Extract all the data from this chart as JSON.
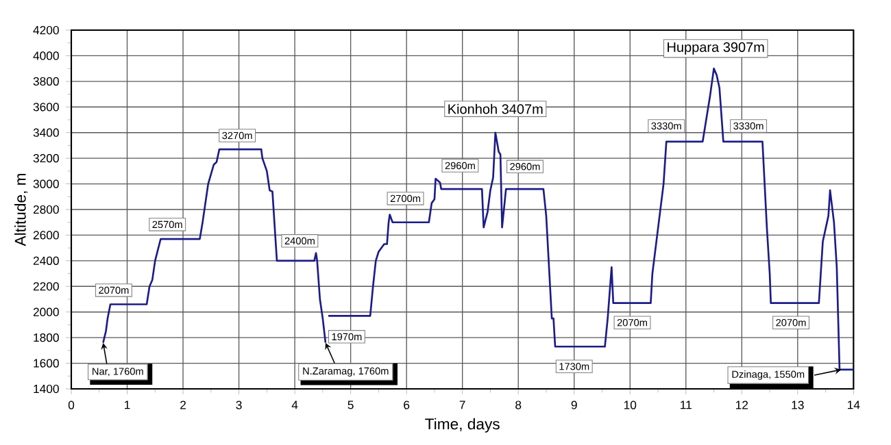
{
  "chart_data": {
    "type": "line",
    "xlabel": "Time, days",
    "ylabel": "Altitude, m",
    "color": "#1c1c8a",
    "grid": true,
    "xlim": [
      0,
      14
    ],
    "xticks": [
      0,
      1,
      2,
      3,
      4,
      5,
      6,
      7,
      8,
      9,
      10,
      11,
      12,
      13,
      14
    ],
    "ylim": [
      1400,
      4200
    ],
    "yticks": [
      1400,
      1600,
      1800,
      2000,
      2200,
      2400,
      2600,
      2800,
      3000,
      3200,
      3400,
      3600,
      3800,
      4000,
      4200
    ],
    "x": [
      0.57,
      0.62,
      0.65,
      0.7,
      1.35,
      1.4,
      1.45,
      1.5,
      1.6,
      2.3,
      2.35,
      2.45,
      2.55,
      2.6,
      2.65,
      3.4,
      3.42,
      3.5,
      3.55,
      3.6,
      3.65,
      3.68,
      4.35,
      4.38,
      4.4,
      4.45,
      4.5,
      4.55,
      4.58,
      4.6,
      5.35,
      5.4,
      5.45,
      5.5,
      5.6,
      5.65,
      5.68,
      5.7,
      5.75,
      6.4,
      6.45,
      6.5,
      6.52,
      6.6,
      6.62,
      7.35,
      7.38,
      7.45,
      7.5,
      7.55,
      7.59,
      7.65,
      7.68,
      7.71,
      7.78,
      8.45,
      8.5,
      8.55,
      8.6,
      8.63,
      8.66,
      9.55,
      9.6,
      9.67,
      9.7,
      10.37,
      10.4,
      10.5,
      10.6,
      10.65,
      11.3,
      11.4,
      11.43,
      11.5,
      11.55,
      11.6,
      11.67,
      12.37,
      12.45,
      12.5,
      12.52,
      13.38,
      13.45,
      13.5,
      13.55,
      13.58,
      13.65,
      13.7,
      13.75,
      14
    ],
    "values": [
      1760,
      1850,
      1950,
      2060,
      2060,
      2200,
      2250,
      2400,
      2570,
      2570,
      2700,
      3000,
      3150,
      3170,
      3270,
      3270,
      3200,
      3100,
      2950,
      2940,
      2600,
      2400,
      2400,
      2460,
      2400,
      2100,
      1950,
      1760,
      null,
      1970,
      1970,
      2200,
      2400,
      2470,
      2530,
      2530,
      2700,
      2760,
      2700,
      2700,
      2850,
      2880,
      3040,
      3010,
      2960,
      2960,
      2660,
      2780,
      2950,
      3050,
      3400,
      3250,
      3230,
      2660,
      2960,
      2960,
      2750,
      2350,
      1950,
      1950,
      1730,
      1730,
      1950,
      2350,
      2070,
      2070,
      2300,
      2650,
      3000,
      3330,
      3330,
      3600,
      3680,
      3900,
      3850,
      3750,
      3330,
      3330,
      2650,
      2300,
      2070,
      2070,
      2550,
      2650,
      2750,
      2950,
      2700,
      2350,
      1550,
      1550
    ],
    "annotations": [
      {
        "text": "Nar, 1760m",
        "x": 0.57,
        "y": 1760
      },
      {
        "text": "N.Zaramag, 1760m",
        "x": 4.55,
        "y": 1760
      },
      {
        "text": "Dzinaga, 1550m",
        "x": 13.78,
        "y": 1550
      },
      {
        "text": "2070m",
        "x": 0.76,
        "y": 2170
      },
      {
        "text": "2570m",
        "x": 1.72,
        "y": 2683
      },
      {
        "text": "3270m",
        "x": 2.97,
        "y": 3377
      },
      {
        "text": "2400m",
        "x": 4.09,
        "y": 2555
      },
      {
        "text": "1970m",
        "x": 4.93,
        "y": 1807
      },
      {
        "text": "2700m",
        "x": 5.98,
        "y": 2886
      },
      {
        "text": "2960m",
        "x": 6.96,
        "y": 3142
      },
      {
        "text": "Kionhoh 3407m",
        "x": 7.59,
        "y": 3400
      },
      {
        "text": "2960m",
        "x": 8.12,
        "y": 3135
      },
      {
        "text": "1730m",
        "x": 9.0,
        "y": 1575
      },
      {
        "text": "2070m",
        "x": 10.04,
        "y": 1917
      },
      {
        "text": "3330m",
        "x": 10.65,
        "y": 3452
      },
      {
        "text": "Huppara 3907m",
        "x": 11.5,
        "y": 3900
      },
      {
        "text": "3330m",
        "x": 12.12,
        "y": 3452
      },
      {
        "text": "2070m",
        "x": 12.88,
        "y": 1917
      }
    ]
  }
}
